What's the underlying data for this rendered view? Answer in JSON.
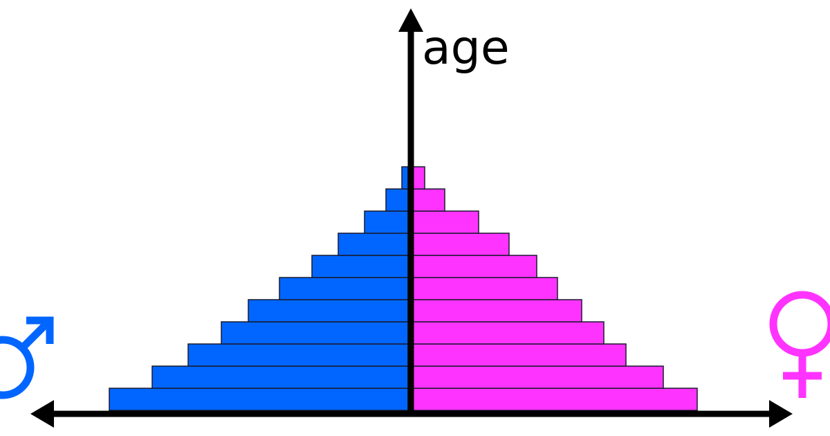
{
  "chart_data": {
    "type": "bar",
    "ylabel": "age",
    "colors": {
      "male": "#0066ff",
      "female": "#ff33ff",
      "axis": "#000000"
    },
    "series": [
      {
        "values": [
          432,
          370,
          318,
          270,
          231,
          186,
          139,
          101,
          63,
          32,
          9
        ]
      },
      {
        "values": [
          418,
          369,
          315,
          283,
          251,
          216,
          186,
          146,
          102,
          53,
          24
        ]
      }
    ]
  },
  "icons": {
    "male": "male-symbol-icon",
    "female": "female-symbol-icon"
  }
}
